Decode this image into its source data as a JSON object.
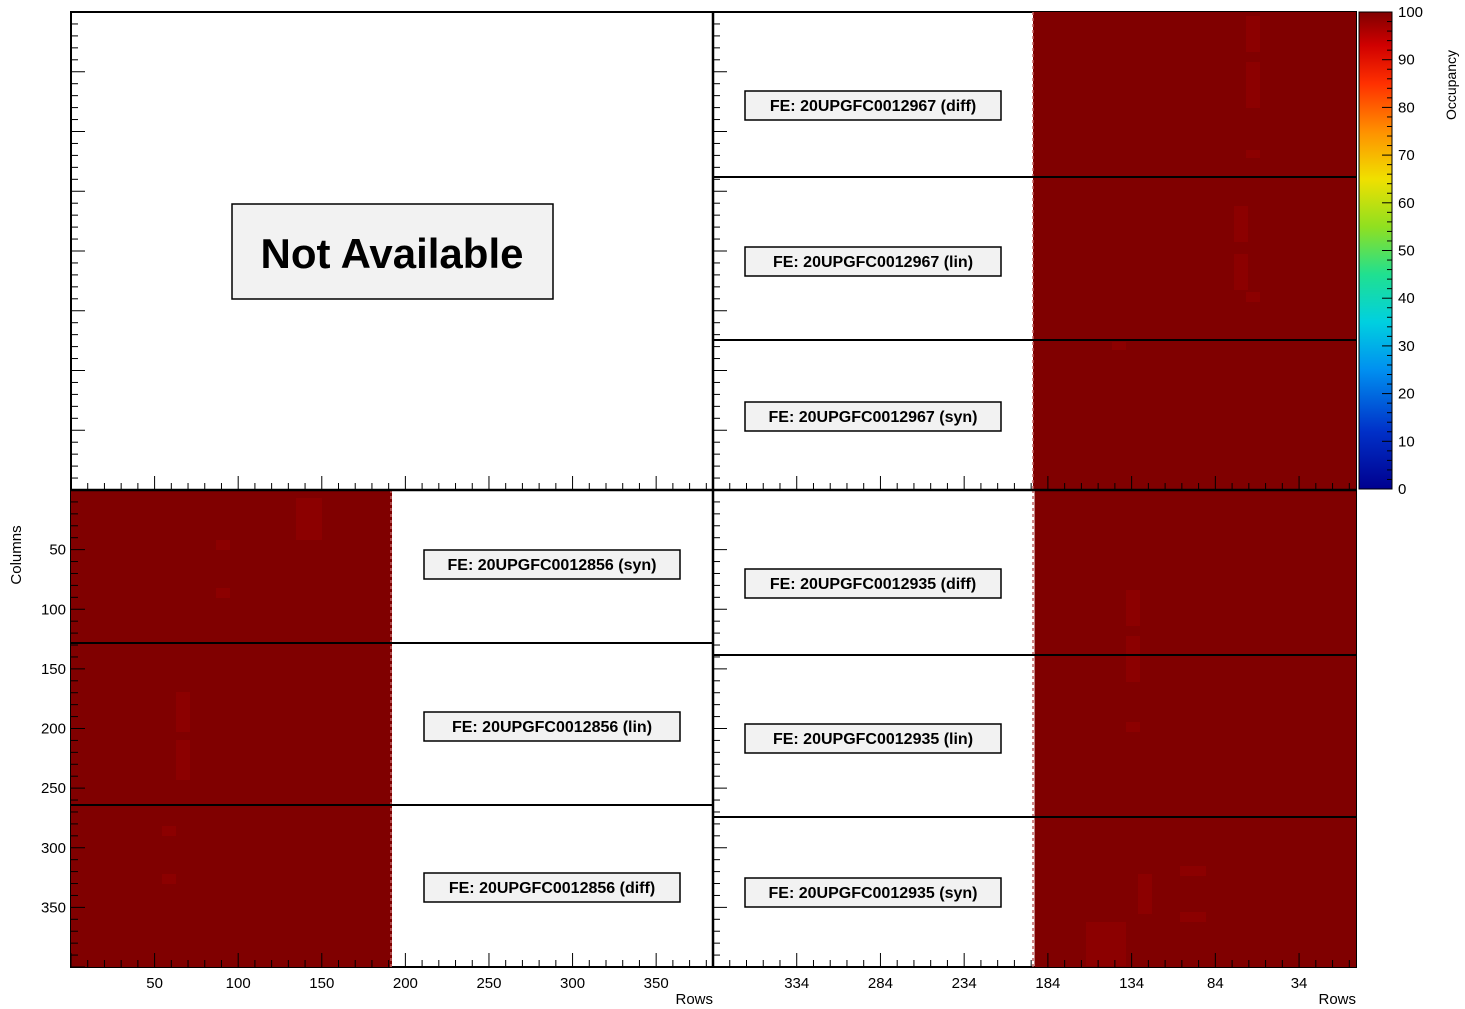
{
  "chart_data": {
    "type": "heatmap",
    "xlabel": "Rows",
    "ylabel": "Columns",
    "colorbar": {
      "label": "Occupancy",
      "range": [
        0,
        100
      ],
      "ticks": [
        "0",
        "10",
        "20",
        "30",
        "40",
        "50",
        "60",
        "70",
        "80",
        "90",
        "100"
      ]
    },
    "y_ticks": {
      "values": [
        50,
        100,
        150,
        200,
        250,
        300,
        350
      ],
      "labels": [
        "50",
        "100",
        "150",
        "200",
        "250",
        "300",
        "350"
      ],
      "range": [
        0,
        400
      ]
    },
    "panels": [
      {
        "id": "top-left",
        "status": "Not Available",
        "labels": []
      },
      {
        "id": "top-right",
        "labels": [
          "FE: 20UPGFC0012967 (diff)",
          "FE: 20UPGFC0012967 (lin)",
          "FE: 20UPGFC0012967 (syn)"
        ],
        "occupancy": 100
      },
      {
        "id": "bottom-left",
        "labels": [
          "FE: 20UPGFC0012856 (syn)",
          "FE: 20UPGFC0012856 (lin)",
          "FE: 20UPGFC0012856 (diff)"
        ],
        "x_ticks": [
          "50",
          "100",
          "150",
          "200",
          "250",
          "300",
          "350"
        ],
        "x_range": [
          0,
          384
        ],
        "data_x_range": [
          0,
          192
        ],
        "xlabel": "Rows",
        "occupancy": 100
      },
      {
        "id": "bottom-right",
        "labels": [
          "FE: 20UPGFC0012935 (diff)",
          "FE: 20UPGFC0012935 (lin)",
          "FE: 20UPGFC0012935 (syn)"
        ],
        "x_ticks": [
          "334",
          "284",
          "234",
          "184",
          "134",
          "84",
          "34"
        ],
        "x_range": [
          384,
          0
        ],
        "data_x_range": [
          192,
          0
        ],
        "xlabel": "Rows",
        "occupancy": 100
      }
    ]
  }
}
